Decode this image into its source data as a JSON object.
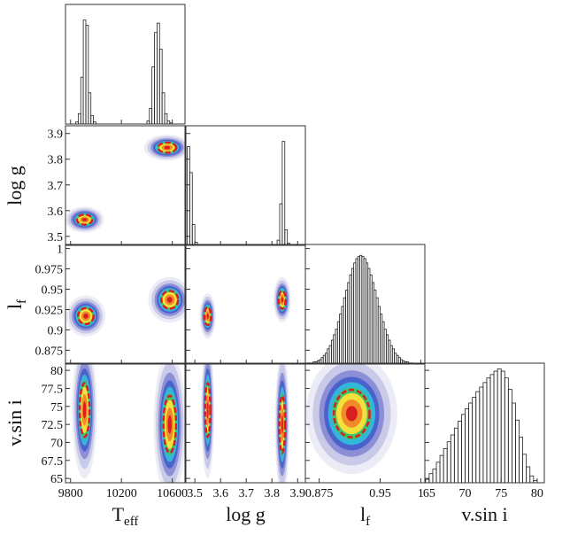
{
  "chart_data": {
    "type": "corner",
    "variables": [
      {
        "label": "T",
        "sub": "eff",
        "lim": [
          9760,
          10700
        ],
        "xticks": [
          9800,
          10200,
          10600
        ],
        "yticks": []
      },
      {
        "label": "log g",
        "lim": [
          3.465,
          3.93
        ],
        "xticks": [
          3.5,
          3.6,
          3.7,
          3.8,
          3.9
        ],
        "yticks": [
          3.5,
          3.6,
          3.7,
          3.8,
          3.9
        ]
      },
      {
        "label": "l",
        "sub": "f",
        "lim": [
          0.858,
          1.005
        ],
        "xticks": [
          0.875,
          0.95,
          1
        ],
        "yticks": [
          0.875,
          0.9,
          0.925,
          0.95,
          0.975,
          1
        ]
      },
      {
        "label": "v.sin i",
        "lim": [
          64.4,
          81
        ],
        "xticks": [
          65,
          70,
          75,
          80
        ],
        "yticks": [
          65,
          67.5,
          70,
          72.5,
          75,
          77.5,
          80
        ]
      }
    ],
    "histograms": [
      {
        "var": 0,
        "ylim": [
          0,
          115
        ],
        "bins": [
          9840,
          9860,
          9880,
          9900,
          9920,
          9940,
          9960,
          9980,
          10000,
          10020,
          10040,
          10060,
          10080,
          10100,
          10120,
          10140,
          10160,
          10180,
          10200,
          10220,
          10240,
          10260,
          10280,
          10300,
          10320,
          10340,
          10360,
          10380,
          10400,
          10420,
          10440,
          10460,
          10480,
          10500,
          10520,
          10540,
          10560,
          10580,
          10600,
          10620,
          10640
        ],
        "counts": [
          2,
          10,
          45,
          100,
          95,
          30,
          8,
          2,
          0,
          0,
          0,
          0,
          0,
          0,
          0,
          0,
          0,
          0,
          0,
          0,
          0,
          0,
          0,
          0,
          0,
          0,
          0,
          0,
          3,
          15,
          55,
          88,
          97,
          72,
          30,
          10,
          3,
          1,
          0,
          0
        ]
      },
      {
        "var": 1,
        "ylim": [
          0,
          115
        ],
        "bins": [
          3.46,
          3.47,
          3.48,
          3.49,
          3.5,
          3.51,
          3.52,
          3.53,
          3.54,
          3.55,
          3.56,
          3.57,
          3.58,
          3.59,
          3.6,
          3.61,
          3.62,
          3.63,
          3.64,
          3.65,
          3.66,
          3.67,
          3.68,
          3.69,
          3.7,
          3.71,
          3.72,
          3.73,
          3.74,
          3.75,
          3.76,
          3.77,
          3.78,
          3.79,
          3.8,
          3.81,
          3.82,
          3.83,
          3.84,
          3.85,
          3.86,
          3.87,
          3.88,
          3.89,
          3.9
        ],
        "counts": [
          0,
          95,
          70,
          20,
          3,
          0,
          0,
          0,
          0,
          0,
          0,
          0,
          0,
          0,
          0,
          0,
          0,
          0,
          0,
          0,
          0,
          0,
          0,
          0,
          0,
          0,
          0,
          0,
          0,
          0,
          0,
          0,
          0,
          0,
          0,
          0,
          5,
          40,
          100,
          15,
          2,
          0,
          0,
          0
        ]
      },
      {
        "var": 2,
        "ylim": [
          0,
          110
        ],
        "bins": [
          0.86,
          0.8625,
          0.865,
          0.8675,
          0.87,
          0.8725,
          0.875,
          0.8775,
          0.88,
          0.8825,
          0.885,
          0.8875,
          0.89,
          0.8925,
          0.895,
          0.8975,
          0.9,
          0.9025,
          0.905,
          0.9075,
          0.91,
          0.9125,
          0.915,
          0.9175,
          0.92,
          0.9225,
          0.925,
          0.9275,
          0.93,
          0.9325,
          0.935,
          0.9375,
          0.94,
          0.9425,
          0.945,
          0.9475,
          0.95,
          0.9525,
          0.955,
          0.9575,
          0.96,
          0.9625,
          0.965,
          0.9675,
          0.97,
          0.9725,
          0.975,
          0.9775,
          0.98,
          0.9825,
          0.985,
          0.9875,
          0.99
        ],
        "counts": [
          1,
          1,
          1,
          2,
          2,
          3,
          4,
          6,
          8,
          10,
          14,
          17,
          22,
          27,
          32,
          39,
          46,
          53,
          61,
          68,
          75,
          82,
          88,
          93,
          97,
          99,
          100,
          99,
          97,
          93,
          88,
          82,
          75,
          68,
          61,
          53,
          46,
          39,
          32,
          27,
          22,
          17,
          14,
          10,
          8,
          6,
          4,
          3,
          2,
          2,
          1,
          1
        ]
      },
      {
        "var": 3,
        "ylim": [
          0,
          105
        ],
        "bins": [
          64.5,
          65,
          65.5,
          66,
          66.5,
          67,
          67.5,
          68,
          68.5,
          69,
          69.5,
          70,
          70.5,
          71,
          71.5,
          72,
          72.5,
          73,
          73.5,
          74,
          74.5,
          75,
          75.5,
          76,
          76.5,
          77,
          77.5,
          78,
          78.5,
          79,
          79.5,
          80
        ],
        "counts": [
          3,
          8,
          12,
          18,
          24,
          30,
          36,
          42,
          48,
          54,
          60,
          65,
          70,
          75,
          80,
          84,
          88,
          92,
          95,
          98,
          100,
          98,
          92,
          82,
          70,
          55,
          40,
          25,
          14,
          6,
          2
        ]
      }
    ],
    "densities": [
      {
        "xvar": 0,
        "yvar": 1,
        "blobs": [
          {
            "x": 9910,
            "y": 3.565,
            "sx": 55,
            "sy": 0.018
          },
          {
            "x": 10560,
            "y": 3.845,
            "sx": 65,
            "sy": 0.018
          }
        ]
      },
      {
        "xvar": 0,
        "yvar": 2,
        "blobs": [
          {
            "x": 9920,
            "y": 0.917,
            "sx": 55,
            "sy": 0.009
          },
          {
            "x": 10580,
            "y": 0.937,
            "sx": 60,
            "sy": 0.01
          }
        ]
      },
      {
        "xvar": 1,
        "yvar": 2,
        "blobs": [
          {
            "x": 3.55,
            "y": 0.917,
            "sx": 0.011,
            "sy": 0.01
          },
          {
            "x": 3.84,
            "y": 0.937,
            "sx": 0.012,
            "sy": 0.01
          }
        ]
      },
      {
        "xvar": 0,
        "yvar": 3,
        "blobs": [
          {
            "x": 9910,
            "y": 74.5,
            "sx": 35,
            "sy": 3.4
          },
          {
            "x": 10580,
            "y": 72.5,
            "sx": 45,
            "sy": 3.6
          }
        ]
      },
      {
        "xvar": 1,
        "yvar": 3,
        "blobs": [
          {
            "x": 3.55,
            "y": 74.5,
            "sx": 0.009,
            "sy": 3.4
          },
          {
            "x": 3.84,
            "y": 72.5,
            "sx": 0.01,
            "sy": 3.6
          }
        ]
      },
      {
        "xvar": 2,
        "yvar": 3,
        "blobs": [
          {
            "x": 0.915,
            "y": 74,
            "sx": 0.02,
            "sy": 3.0
          }
        ]
      }
    ]
  }
}
